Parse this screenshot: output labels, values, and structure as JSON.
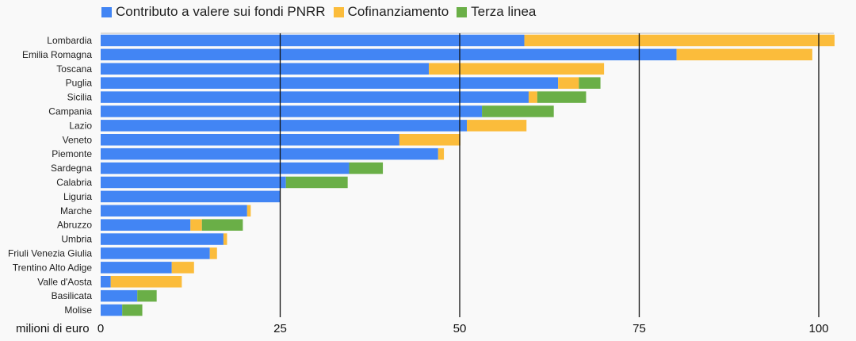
{
  "chart_data": {
    "type": "bar",
    "orientation": "horizontal",
    "stacked": true,
    "title": "",
    "xlabel": "milioni di euro",
    "ylabel": "",
    "xlim": [
      0,
      103
    ],
    "xticks": [
      0,
      25,
      50,
      75,
      100
    ],
    "grid": "vertical lines at ticks",
    "legend_position": "top-left",
    "categories": [
      "Lombardia",
      "Emilia Romagna",
      "Toscana",
      "Puglia",
      "Sicilia",
      "Campania",
      "Lazio",
      "Veneto",
      "Piemonte",
      "Sardegna",
      "Calabria",
      "Liguria",
      "Marche",
      "Abruzzo",
      "Umbria",
      "Friuli Venezia Giulia",
      "Trentino Alto Adige",
      "Valle d'Aosta",
      "Basilicata",
      "Molise"
    ],
    "series": [
      {
        "name": "Contributo a valere sui fondi PNRR",
        "color": "#4285f4",
        "values": [
          59,
          80.2,
          45.7,
          63.7,
          59.6,
          53.1,
          51,
          41.6,
          47,
          34.6,
          25.8,
          25,
          20.4,
          12.5,
          17.1,
          15.2,
          9.9,
          1.4,
          5.1,
          3
        ]
      },
      {
        "name": "Cofinanziamento",
        "color": "#fbbc3b",
        "values": [
          43.2,
          18.9,
          24.4,
          2.9,
          1.2,
          0,
          8.3,
          8.5,
          0.8,
          0,
          0,
          0,
          0.5,
          1.6,
          0.5,
          1,
          3.1,
          9.9,
          0,
          0
        ]
      },
      {
        "name": "Terza linea",
        "color": "#6aaf47",
        "values": [
          0,
          0,
          0,
          3,
          6.8,
          10,
          0,
          0,
          0,
          4.7,
          8.6,
          0,
          0,
          5.7,
          0,
          0,
          0,
          0,
          2.7,
          2.8
        ]
      }
    ]
  }
}
